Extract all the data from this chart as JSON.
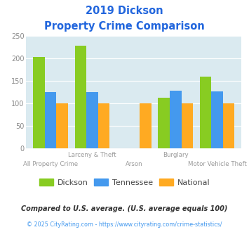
{
  "title_line1": "2019 Dickson",
  "title_line2": "Property Crime Comparison",
  "categories": [
    "All Property Crime",
    "Larceny & Theft",
    "Arson",
    "Burglary",
    "Motor Vehicle Theft"
  ],
  "series": {
    "Dickson": [
      204,
      229,
      0,
      113,
      160
    ],
    "Tennessee": [
      125,
      125,
      0,
      129,
      127
    ],
    "National": [
      100,
      100,
      100,
      100,
      100
    ]
  },
  "colors": {
    "Dickson": "#88cc22",
    "Tennessee": "#4499ee",
    "National": "#ffaa22"
  },
  "ylim": [
    0,
    250
  ],
  "yticks": [
    0,
    50,
    100,
    150,
    200,
    250
  ],
  "background_color": "#daeaf0",
  "title_color": "#2266dd",
  "xlabel_top": [
    "",
    "Larceny & Theft",
    "",
    "Burglary",
    ""
  ],
  "xlabel_bot": [
    "All Property Crime",
    "",
    "Arson",
    "",
    "Motor Vehicle Theft"
  ],
  "legend_labels": [
    "Dickson",
    "Tennessee",
    "National"
  ],
  "footnote1": "Compared to U.S. average. (U.S. average equals 100)",
  "footnote2": "© 2025 CityRating.com - https://www.cityrating.com/crime-statistics/",
  "footnote1_color": "#333333",
  "footnote2_color": "#4499ee"
}
